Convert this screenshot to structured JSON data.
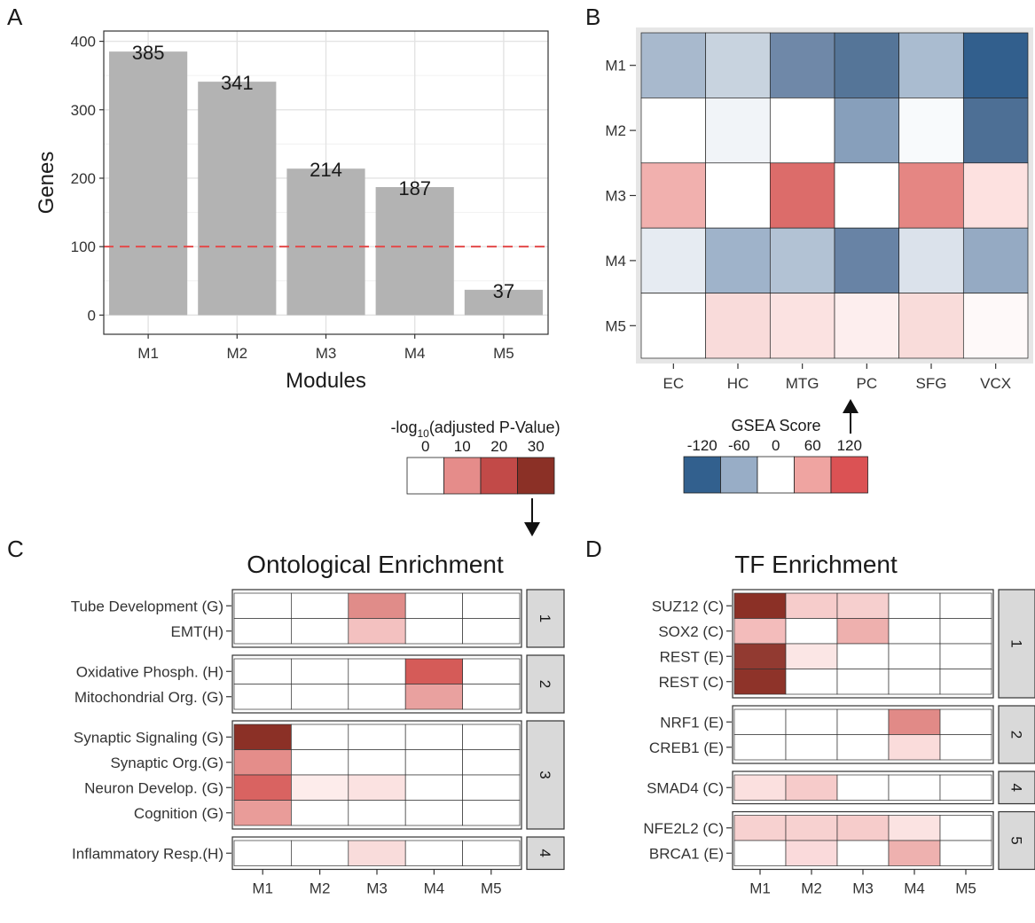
{
  "panel_labels": {
    "a": "A",
    "b": "B",
    "c": "C",
    "d": "D"
  },
  "chart_data": [
    {
      "panel": "A",
      "type": "bar",
      "xlabel": "Modules",
      "ylabel": "Genes",
      "categories": [
        "M1",
        "M2",
        "M3",
        "M4",
        "M5"
      ],
      "values": [
        385,
        341,
        214,
        187,
        37
      ],
      "data_labels": [
        "385",
        "341",
        "214",
        "187",
        "37"
      ],
      "ylim": [
        -28,
        415
      ],
      "yticks": [
        0,
        100,
        200,
        300,
        400
      ],
      "reference_line": {
        "y": 100,
        "style": "dashed",
        "color": "#e34a4a"
      },
      "grid": true,
      "bar_color": "#b3b3b3"
    },
    {
      "panel": "B",
      "type": "heatmap",
      "rows": [
        "M1",
        "M2",
        "M3",
        "M4",
        "M5"
      ],
      "columns": [
        "EC",
        "HC",
        "MTG",
        "PC",
        "SFG",
        "VCX"
      ],
      "colors": [
        [
          "#a8b9cd",
          "#c8d3df",
          "#6f88a8",
          "#557598",
          "#aabcd0",
          "#325f8d"
        ],
        [
          "#ffffff",
          "#f1f4f8",
          "#ffffff",
          "#879fbb",
          "#f8fafc",
          "#4d6f95"
        ],
        [
          "#f1b0ae",
          "#ffffff",
          "#dc6c6a",
          "#ffffff",
          "#e58683",
          "#fde1e0"
        ],
        [
          "#e6ebf2",
          "#9fb3ca",
          "#b2c2d4",
          "#6883a5",
          "#dbe2eb",
          "#95aac3"
        ],
        [
          "#ffffff",
          "#f9dbda",
          "#fbe2e1",
          "#fdeeee",
          "#f9dcda",
          "#fef9f9"
        ]
      ],
      "legend": {
        "title": "GSEA Score",
        "ticks": [
          "-120",
          "-60",
          "0",
          "60",
          "120"
        ],
        "colors": [
          "#32608e",
          "#98adc6",
          "#ffffff",
          "#efa4a1",
          "#db5254"
        ]
      }
    },
    {
      "panel": "C",
      "type": "heatmap",
      "title": "Ontological Enrichment",
      "columns": [
        "M1",
        "M2",
        "M3",
        "M4",
        "M5"
      ],
      "groups": [
        {
          "label": "1",
          "rows": [
            {
              "name": "Tube Development (G)",
              "colors": [
                "#ffffff",
                "#ffffff",
                "#e08c89",
                "#ffffff",
                "#ffffff"
              ]
            },
            {
              "name": "EMT(H)",
              "colors": [
                "#ffffff",
                "#ffffff",
                "#f3c1c0",
                "#ffffff",
                "#ffffff"
              ]
            }
          ]
        },
        {
          "label": "2",
          "rows": [
            {
              "name": "Oxidative Phosph. (H)",
              "colors": [
                "#ffffff",
                "#ffffff",
                "#ffffff",
                "#d55b58",
                "#ffffff"
              ]
            },
            {
              "name": "Mitochondrial Org. (G)",
              "colors": [
                "#ffffff",
                "#ffffff",
                "#ffffff",
                "#e9a19f",
                "#ffffff"
              ]
            }
          ]
        },
        {
          "label": "3",
          "rows": [
            {
              "name": "Synaptic Signaling (G)",
              "colors": [
                "#8b3026",
                "#ffffff",
                "#ffffff",
                "#ffffff",
                "#ffffff"
              ]
            },
            {
              "name": "Synaptic Org.(G)",
              "colors": [
                "#e48d8a",
                "#ffffff",
                "#ffffff",
                "#ffffff",
                "#ffffff"
              ]
            },
            {
              "name": "Neuron Develop. (G)",
              "colors": [
                "#d96361",
                "#fdeceb",
                "#fbe2e1",
                "#ffffff",
                "#ffffff"
              ]
            },
            {
              "name": "Cognition (G)",
              "colors": [
                "#e99c99",
                "#ffffff",
                "#ffffff",
                "#ffffff",
                "#ffffff"
              ]
            }
          ]
        },
        {
          "label": "4",
          "rows": [
            {
              "name": "Inflammatory Resp.(H)",
              "colors": [
                "#ffffff",
                "#ffffff",
                "#f9dcdb",
                "#ffffff",
                "#ffffff"
              ]
            }
          ]
        }
      ],
      "legend": {
        "title_prefix": "-log",
        "title_subscript": "10",
        "title_suffix": "(adjusted P-Value)",
        "ticks": [
          "0",
          "10",
          "20",
          "30"
        ],
        "colors": [
          "#ffffff",
          "#e58c8a",
          "#c24a48",
          "#8b3026"
        ]
      }
    },
    {
      "panel": "D",
      "type": "heatmap",
      "title": "TF Enrichment",
      "columns": [
        "M1",
        "M2",
        "M3",
        "M4",
        "M5"
      ],
      "groups": [
        {
          "label": "1",
          "rows": [
            {
              "name": "SUZ12 (C)",
              "colors": [
                "#8b3026",
                "#f6cccb",
                "#f6cfce",
                "#ffffff",
                "#ffffff"
              ]
            },
            {
              "name": "SOX2 (C)",
              "colors": [
                "#f3bcbb",
                "#ffffff",
                "#eeb0ae",
                "#ffffff",
                "#ffffff"
              ]
            },
            {
              "name": "REST (E)",
              "colors": [
                "#923a31",
                "#fbe6e5",
                "#ffffff",
                "#ffffff",
                "#ffffff"
              ]
            },
            {
              "name": "REST (C)",
              "colors": [
                "#8e3329",
                "#ffffff",
                "#ffffff",
                "#ffffff",
                "#ffffff"
              ]
            }
          ]
        },
        {
          "label": "2",
          "rows": [
            {
              "name": "NRF1 (E)",
              "colors": [
                "#ffffff",
                "#ffffff",
                "#ffffff",
                "#e18a87",
                "#ffffff"
              ]
            },
            {
              "name": "CREB1 (E)",
              "colors": [
                "#ffffff",
                "#ffffff",
                "#ffffff",
                "#fadcdb",
                "#ffffff"
              ]
            }
          ]
        },
        {
          "label": "4",
          "rows": [
            {
              "name": "SMAD4 (C)",
              "colors": [
                "#fbe0df",
                "#f6cbca",
                "#ffffff",
                "#ffffff",
                "#ffffff"
              ]
            }
          ]
        },
        {
          "label": "5",
          "rows": [
            {
              "name": "NFE2L2 (C)",
              "colors": [
                "#f7d1d0",
                "#f7d1d0",
                "#f6cccb",
                "#fbe3e2",
                "#ffffff"
              ]
            },
            {
              "name": "BRCA1 (E)",
              "colors": [
                "#ffffff",
                "#fadadb",
                "#ffffff",
                "#eeb1af",
                "#ffffff"
              ]
            }
          ]
        }
      ]
    }
  ]
}
